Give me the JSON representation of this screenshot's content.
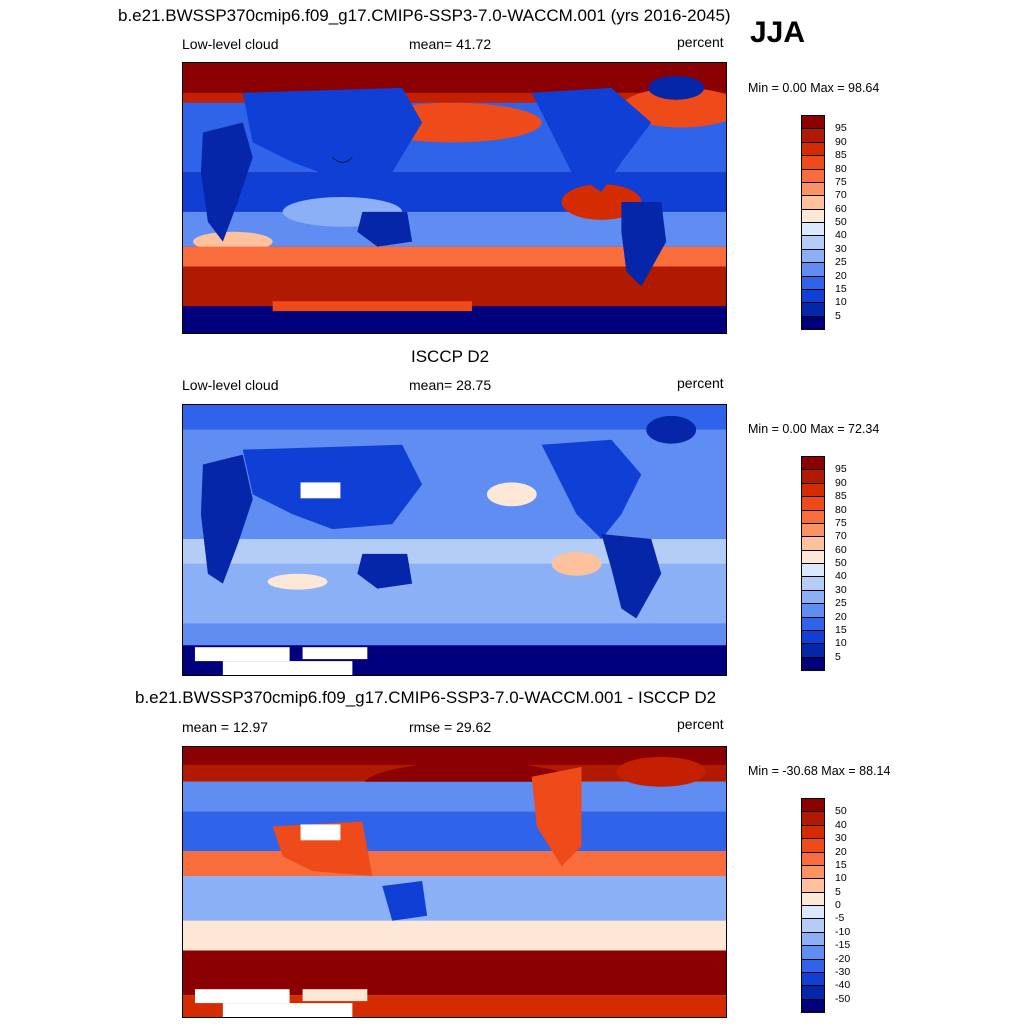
{
  "season": "JJA",
  "panels": [
    {
      "title": "b.e21.BWSSP370cmip6.f09_g17.CMIP6-SSP3-7.0-WACCM.001 (yrs 2016-2045)",
      "left_label": "Low-level cloud",
      "center_label": "mean=  41.72",
      "units": "percent",
      "minmax": "Min =   0.00 Max =  98.64",
      "colorbar_labels": [
        "95",
        "90",
        "85",
        "80",
        "75",
        "70",
        "60",
        "50",
        "40",
        "30",
        "25",
        "20",
        "15",
        "10",
        "5"
      ]
    },
    {
      "title": "ISCCP D2",
      "left_label": "Low-level cloud",
      "center_label": "mean=  28.75",
      "units": "percent",
      "minmax": "Min =   0.00 Max =  72.34",
      "colorbar_labels": [
        "95",
        "90",
        "85",
        "80",
        "75",
        "70",
        "60",
        "50",
        "40",
        "30",
        "25",
        "20",
        "15",
        "10",
        "5"
      ]
    },
    {
      "title": "b.e21.BWSSP370cmip6.f09_g17.CMIP6-SSP3-7.0-WACCM.001 - ISCCP D2",
      "left_label": "mean =  12.97",
      "center_label": "rmse =  29.62",
      "units": "percent",
      "minmax": "Min = -30.68 Max =  88.14",
      "colorbar_labels": [
        "50",
        "40",
        "30",
        "20",
        "15",
        "10",
        "5",
        "0",
        "-5",
        "-10",
        "-15",
        "-20",
        "-30",
        "-40",
        "-50"
      ]
    }
  ],
  "colorbar_colors": [
    "#8b0000",
    "#b01a00",
    "#d42b00",
    "#ef4a1a",
    "#f96c3b",
    "#fb9262",
    "#fdc19e",
    "#fde8d8",
    "#dce8fb",
    "#b4cdf7",
    "#8cb0f5",
    "#5f8df2",
    "#2f63ea",
    "#0f3fd4",
    "#0526a8",
    "#00007f"
  ]
}
